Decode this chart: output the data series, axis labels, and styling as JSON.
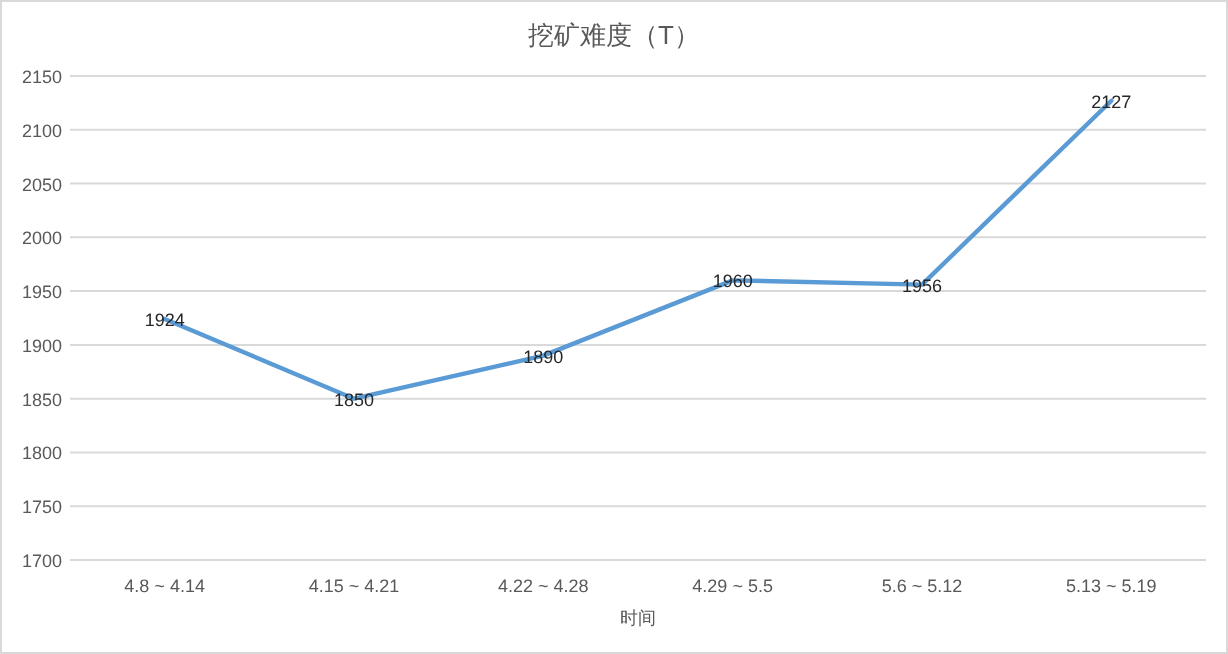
{
  "chart_data": {
    "type": "line",
    "title": "挖矿难度（T）",
    "xlabel": "时间",
    "categories": [
      "4.8 ~ 4.14",
      "4.15 ~ 4.21",
      "4.22 ~ 4.28",
      "4.29 ~ 5.5",
      "5.6 ~ 5.12",
      "5.13 ~ 5.19"
    ],
    "series": [
      {
        "color": "#5b9bd5",
        "values": [
          1924,
          1850,
          1890,
          1960,
          1956,
          2127
        ]
      }
    ],
    "ylim": [
      1700,
      2150
    ],
    "yticks": [
      1700,
      1750,
      1800,
      1850,
      1900,
      1950,
      2000,
      2050,
      2100,
      2150
    ],
    "grid": "y",
    "data_labels": true,
    "marker": "none",
    "line_style": "solid"
  }
}
